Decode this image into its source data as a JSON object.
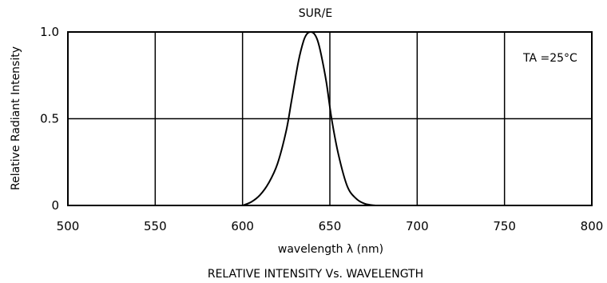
{
  "chart_data": {
    "type": "line",
    "title": "SUR/E",
    "xlabel": "wavelength λ (nm)",
    "ylabel": "Relative Radiant Intensity",
    "caption": "RELATIVE INTENSITY Vs. WAVELENGTH",
    "annotation": "TA =25°C",
    "xlim": [
      500,
      800
    ],
    "ylim": [
      0,
      1.0
    ],
    "x_ticks": [
      "500",
      "550",
      "600",
      "650",
      "700",
      "750",
      "800"
    ],
    "y_ticks": [
      "0",
      "0.5",
      "1.0"
    ],
    "grid": true,
    "series": [
      {
        "x": [
          600,
          605,
          610,
          615,
          620,
          625,
          628,
          632,
          635,
          637,
          639,
          641,
          643,
          645,
          648,
          651,
          655,
          660,
          665,
          670,
          676
        ],
        "y": [
          0.0,
          0.02,
          0.06,
          0.13,
          0.24,
          0.43,
          0.6,
          0.83,
          0.95,
          0.99,
          1.0,
          0.99,
          0.95,
          0.87,
          0.71,
          0.5,
          0.29,
          0.11,
          0.04,
          0.01,
          0.0
        ]
      }
    ]
  }
}
